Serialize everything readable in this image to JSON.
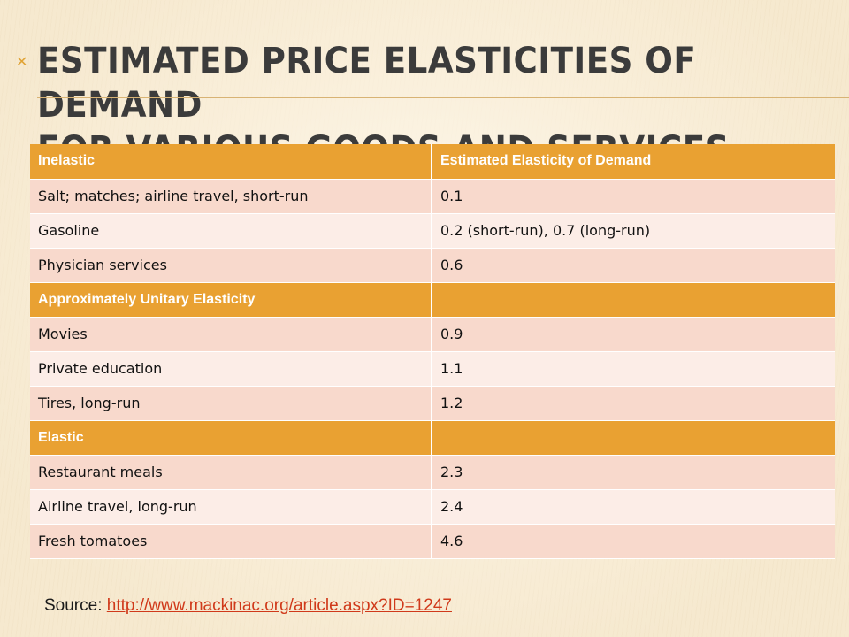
{
  "slide": {
    "title_line1": "Estimated Price Elasticities of Demand",
    "title_line2": "for Various Goods and Services"
  },
  "table": {
    "rows": [
      {
        "type": "header",
        "label": "Inelastic",
        "value": "Estimated Elasticity of Demand"
      },
      {
        "type": "row",
        "label": "Salt; matches; airline travel, short-run",
        "value": "0.1"
      },
      {
        "type": "row",
        "label": "Gasoline",
        "value": "0.2 (short-run), 0.7 (long-run)"
      },
      {
        "type": "row",
        "label": "Physician services",
        "value": "0.6"
      },
      {
        "type": "header",
        "label": "Approximately Unitary Elasticity",
        "value": ""
      },
      {
        "type": "row",
        "label": "Movies",
        "value": "0.9"
      },
      {
        "type": "row",
        "label": "Private education",
        "value": "1.1"
      },
      {
        "type": "row",
        "label": "Tires, long-run",
        "value": "1.2"
      },
      {
        "type": "header",
        "label": "Elastic",
        "value": ""
      },
      {
        "type": "row",
        "label": "Restaurant meals",
        "value": "2.3"
      },
      {
        "type": "row",
        "label": "Airline travel, long-run",
        "value": "2.4"
      },
      {
        "type": "row",
        "label": "Fresh tomatoes",
        "value": "4.6"
      }
    ]
  },
  "source": {
    "prefix": "Source: ",
    "link_text": "http://www.mackinac.org/article.aspx?ID=1247"
  },
  "colors": {
    "header_fill": "#e9a132",
    "row_dark": "#f8d9cc",
    "row_light": "#fcede7",
    "link": "#d0391a"
  },
  "icons": {
    "bullet": "x-bullet-icon"
  }
}
